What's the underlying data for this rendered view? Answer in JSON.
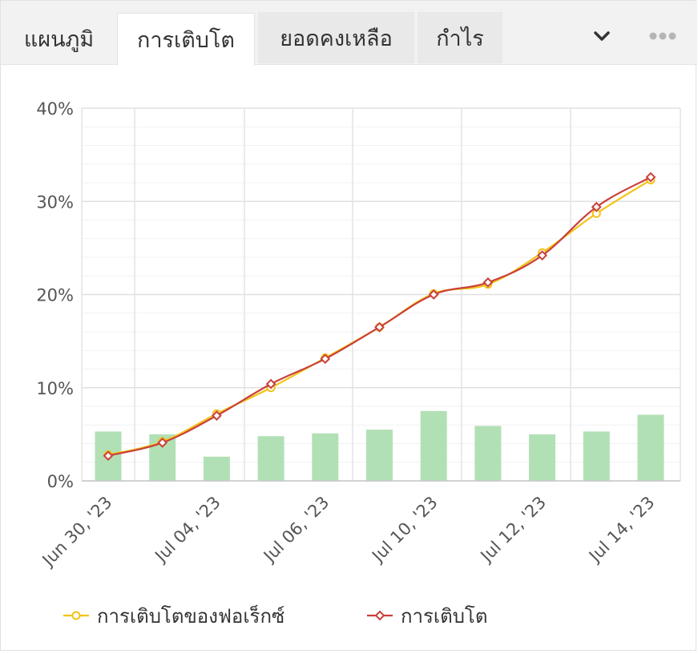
{
  "tabs": [
    {
      "label": "แผนภูมิ",
      "active": false
    },
    {
      "label": "การเติบโต",
      "active": true
    },
    {
      "label": "ยอดคงเหลือ",
      "active": false
    },
    {
      "label": "กำไร",
      "active": false
    }
  ],
  "toolbar": {
    "dropdown_icon": "chevron-down-icon",
    "more_icon": "more-dots-icon"
  },
  "colors": {
    "forex_growth": "#f2c318",
    "growth": "#c9413a",
    "bars": "#b2e0b5",
    "grid": "#e4e4e4",
    "axis_text": "#555555"
  },
  "chart_data": {
    "type": "line",
    "title": "",
    "xlabel": "",
    "ylabel": "",
    "ylim": [
      0,
      40
    ],
    "y_ticks": [
      "0%",
      "10%",
      "20%",
      "30%",
      "40%"
    ],
    "x_tick_labels": [
      "Jun 30, '23",
      "Jul 04, '23",
      "Jul 06, '23",
      "Jul 10, '23",
      "Jul 12, '23",
      "Jul 14, '23"
    ],
    "x_tick_positions": [
      0,
      2,
      4,
      6,
      8,
      10
    ],
    "grid": true,
    "legend_position": "bottom",
    "series": [
      {
        "name": "การเติบโตของฟอเร็กซ์",
        "marker": "circle",
        "values": [
          2.8,
          4.2,
          7.2,
          10.0,
          13.2,
          16.5,
          20.1,
          21.1,
          24.5,
          28.7,
          32.3
        ]
      },
      {
        "name": "การเติบโต",
        "marker": "diamond",
        "values": [
          2.7,
          4.1,
          7.0,
          10.4,
          13.1,
          16.5,
          20.0,
          21.3,
          24.2,
          29.4,
          32.6
        ]
      }
    ],
    "bars": {
      "values": [
        5.3,
        5.0,
        2.6,
        4.8,
        5.1,
        5.5,
        7.5,
        5.9,
        5.0,
        5.3,
        7.1
      ]
    }
  }
}
